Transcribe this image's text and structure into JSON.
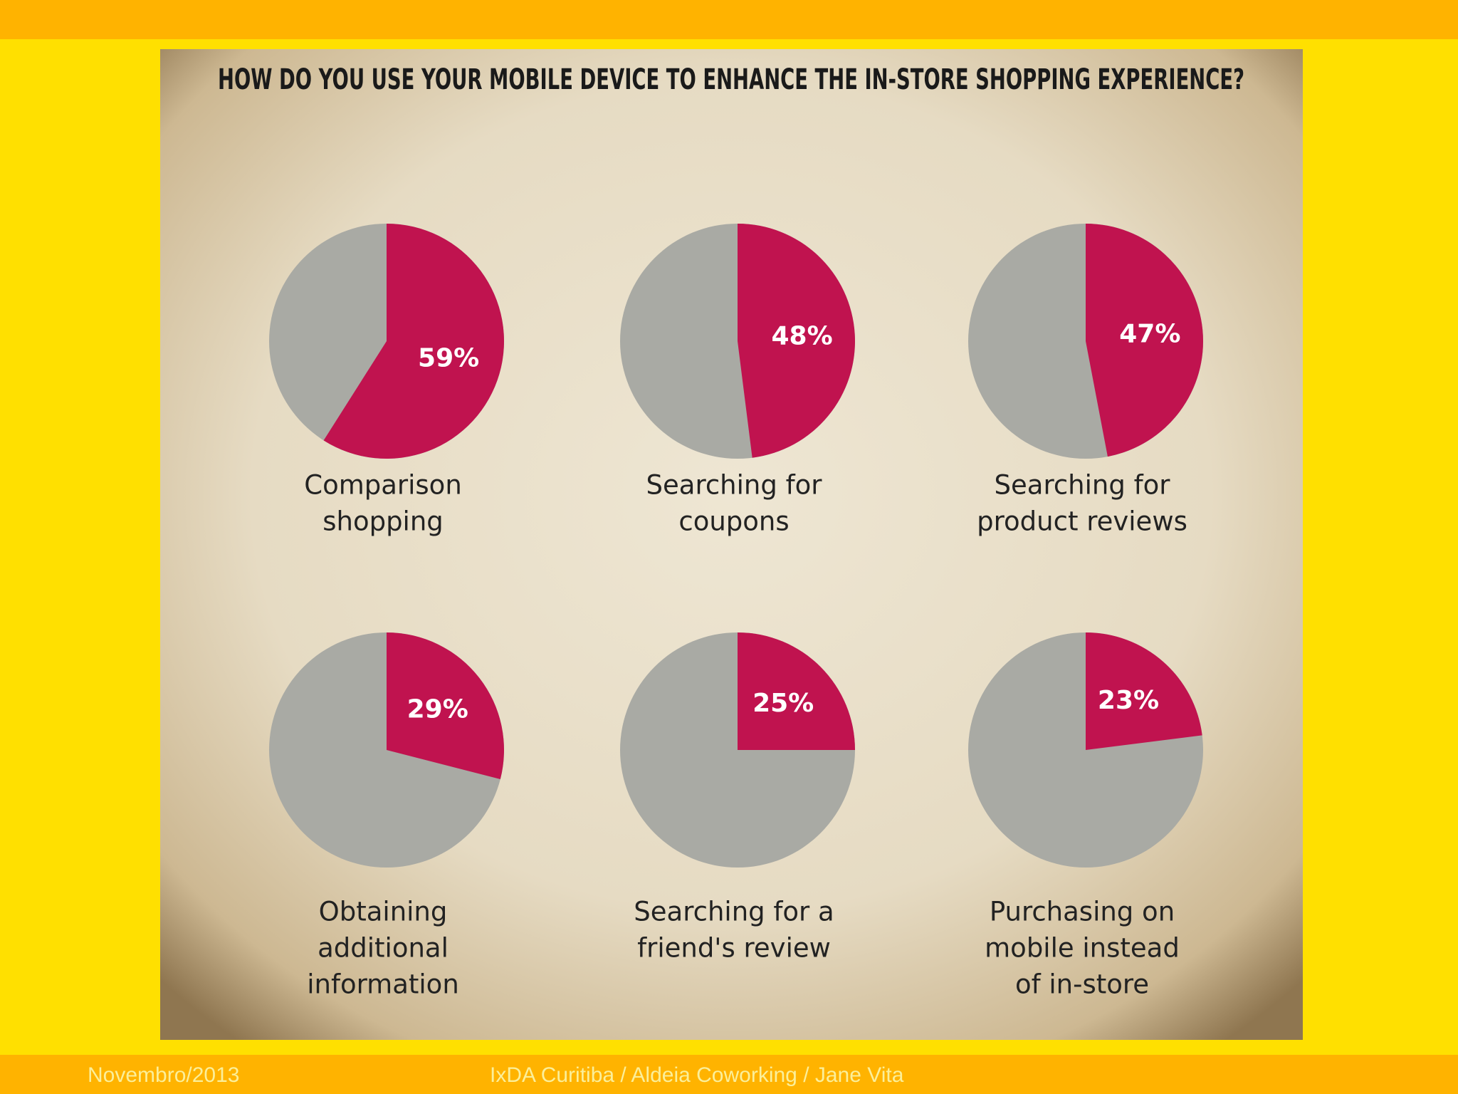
{
  "title": "HOW DO YOU USE YOUR MOBILE DEVICE TO ENHANCE THE IN-STORE SHOPPING EXPERIENCE?",
  "chart_data": [
    {
      "type": "pie",
      "label": [
        "Comparison",
        "shopping"
      ],
      "values": [
        59
      ],
      "value_labels": [
        "59%"
      ],
      "color": "#c0134f",
      "background": "#a9aaa4"
    },
    {
      "type": "pie",
      "label": [
        "Searching for",
        "coupons"
      ],
      "values": [
        48
      ],
      "value_labels": [
        "48%"
      ],
      "color": "#c0134f",
      "background": "#a9aaa4"
    },
    {
      "type": "pie",
      "label": [
        "Searching for",
        "product reviews"
      ],
      "values": [
        47
      ],
      "value_labels": [
        "47%"
      ],
      "color": "#c0134f",
      "background": "#a9aaa4"
    },
    {
      "type": "pie",
      "label": [
        "Obtaining",
        "additional",
        "information"
      ],
      "values": [
        29
      ],
      "value_labels": [
        "29%"
      ],
      "color": "#c0134f",
      "background": "#a9aaa4"
    },
    {
      "type": "pie",
      "label": [
        "Searching for a",
        "friend's review"
      ],
      "values": [
        25
      ],
      "value_labels": [
        "25%"
      ],
      "color": "#c0134f",
      "background": "#a9aaa4"
    },
    {
      "type": "pie",
      "label": [
        "Purchasing on",
        "mobile instead",
        "of in-store"
      ],
      "values": [
        23
      ],
      "value_labels": [
        "23%"
      ],
      "color": "#c0134f",
      "background": "#a9aaa4"
    }
  ],
  "footer": {
    "date": "Novembro/2013",
    "credits": "IxDA Curitiba / Aldeia Coworking / Jane Vita"
  }
}
